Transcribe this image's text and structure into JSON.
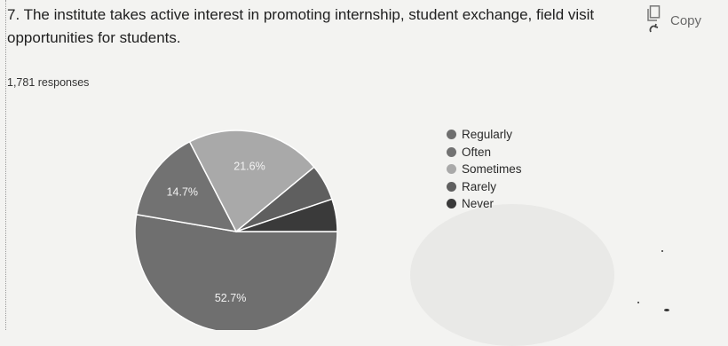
{
  "question": {
    "title": "7. The institute takes active interest in promoting internship, student exchange, field visit opportunities for students.",
    "responses": "1,781 responses"
  },
  "copy": {
    "label": "Copy",
    "icon": "copy-icon"
  },
  "chart_data": {
    "type": "pie",
    "title": "",
    "labels": [
      "Regularly",
      "Often",
      "Sometimes",
      "Rarely",
      "Never"
    ],
    "values": [
      52.7,
      14.7,
      21.6,
      5.8,
      5.2
    ],
    "data_labels": [
      "52.7%",
      "14.7%",
      "21.6%",
      "",
      ""
    ],
    "colors": [
      "#6f6f6f",
      "#727272",
      "#a9a9a9",
      "#5f5f5f",
      "#3a3a3a"
    ],
    "legend_position": "right",
    "start": "3 o'clock, clockwise"
  }
}
